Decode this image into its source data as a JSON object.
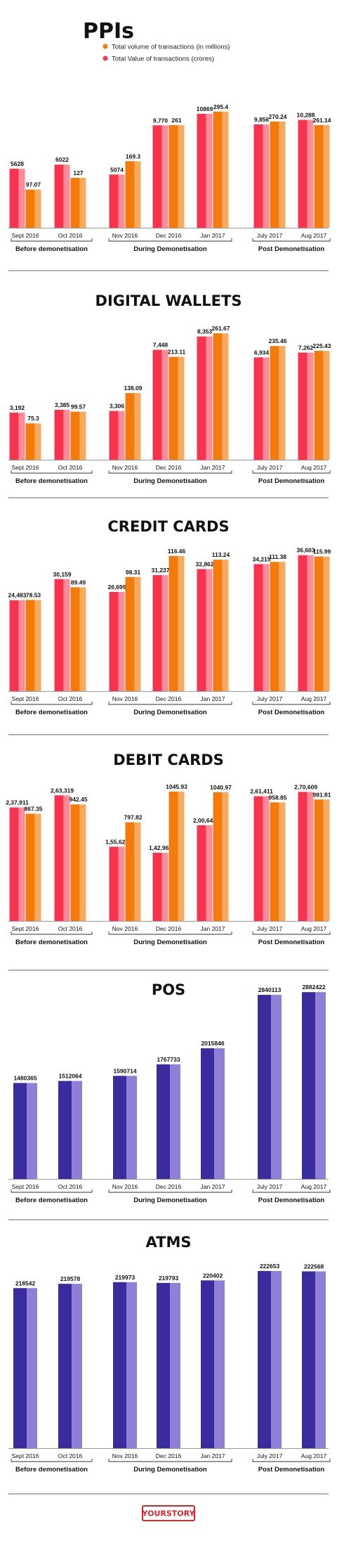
{
  "legend": {
    "volume_label": "Total volume of transactions (in millions)",
    "value_label": "Total Value of transactions (crores)"
  },
  "colors": {
    "value": "#f7334d",
    "value_light": "#ff8a9a",
    "volume": "#f47a0c",
    "volume_light": "#f9aa5f",
    "purple": "#3a2b9e",
    "purple_light": "#8f7fd6"
  },
  "groups": [
    "Before demonetisation",
    "During Demonetisation",
    "Post Demonetisation"
  ],
  "logo": {
    "text": "YOURSTORY"
  },
  "chart_data": [
    {
      "type": "bar",
      "title": "PPIs",
      "categories": [
        "Sept 2016",
        "Oct 2016",
        "Nov 2016",
        "Dec 2016",
        "Jan 2017",
        "July 2017",
        "Aug 2017"
      ],
      "category_groups": [
        "Before demonetisation",
        "Before demonetisation",
        "During Demonetisation",
        "During Demonetisation",
        "During Demonetisation",
        "Post Demonetisation",
        "Post Demonetisation"
      ],
      "series": [
        {
          "name": "Total Value of transactions (crores)",
          "values": [
            5628,
            6022,
            5074,
            9770,
            10869,
            9856,
            10288
          ],
          "labels": [
            "5628",
            "6022",
            "5074",
            "9,770",
            "10869",
            "9,856",
            "10,288"
          ]
        },
        {
          "name": "Total volume of transactions (in millions)",
          "values": [
            97.07,
            127,
            169.3,
            261,
            295.4,
            270.24,
            261.14
          ],
          "labels": [
            "97.07",
            "127",
            "169.3",
            "261",
            "295.4",
            "270.24",
            "261.14"
          ]
        }
      ]
    },
    {
      "type": "bar",
      "title": "DIGITAL WALLETS",
      "categories": [
        "Sept 2016",
        "Oct 2016",
        "Nov 2016",
        "Dec 2016",
        "Jan 2017",
        "July 2017",
        "Aug 2017"
      ],
      "category_groups": [
        "Before demonetisation",
        "Before demonetisation",
        "During Demonetisation",
        "During Demonetisation",
        "During Demonetisation",
        "Post Demonetisation",
        "Post Demonetisation"
      ],
      "series": [
        {
          "values": [
            3192,
            3385,
            3306,
            7448,
            8353,
            6934,
            7262
          ],
          "labels": [
            "3,192",
            "3,385",
            "3,306",
            "7,448",
            "8,353",
            "6,934",
            "7,262"
          ]
        },
        {
          "values": [
            75.3,
            99.57,
            138.09,
            213.11,
            261.67,
            235.46,
            225.43
          ],
          "labels": [
            "75.3",
            "99.57",
            "138.09",
            "213.11",
            "261.67",
            "235.46",
            "225.43"
          ]
        }
      ]
    },
    {
      "type": "bar",
      "title": "CREDIT CARDS",
      "categories": [
        "Sept 2016",
        "Oct 2016",
        "Nov 2016",
        "Dec 2016",
        "Jan 2017",
        "July 2017",
        "Aug 2017"
      ],
      "category_groups": [
        "Before demonetisation",
        "Before demonetisation",
        "During Demonetisation",
        "During Demonetisation",
        "During Demonetisation",
        "Post Demonetisation",
        "Post Demonetisation"
      ],
      "series": [
        {
          "values": [
            24483,
            30159,
            26699,
            31237,
            32862,
            34215,
            36603
          ],
          "labels": [
            "24,483",
            "30,159",
            "26,699",
            "31,237",
            "32,862",
            "34,215",
            "36,603"
          ]
        },
        {
          "values": [
            78.53,
            89.49,
            98.31,
            116.46,
            113.24,
            111.38,
            115.99
          ],
          "labels": [
            "78.53",
            "89.49",
            "98.31",
            "116.46",
            "113.24",
            "111.38",
            "115.99"
          ]
        }
      ]
    },
    {
      "type": "bar",
      "title": "DEBIT CARDS",
      "categories": [
        "Sept 2016",
        "Oct 2016",
        "Nov 2016",
        "Dec 2016",
        "Jan 2017",
        "July 2017",
        "Aug 2017"
      ],
      "category_groups": [
        "Before demonetisation",
        "Before demonetisation",
        "During Demonetisation",
        "During Demonetisation",
        "During Demonetisation",
        "Post Demonetisation",
        "Post Demonetisation"
      ],
      "series": [
        {
          "values": [
            237911,
            263319,
            155626,
            142965,
            200648,
            261411,
            270609
          ],
          "labels": [
            "2,37,911",
            "2,63,319",
            "1,55,626",
            "1,42,965",
            "2,00,648",
            "2,61,411",
            "2,70,609"
          ]
        },
        {
          "values": [
            867.35,
            942.45,
            797.82,
            1045.93,
            1040.97,
            958.85,
            981.81
          ],
          "labels": [
            "867.35",
            "942.45",
            "797.82",
            "1045.93",
            "1040.97",
            "958.85",
            "981.81"
          ]
        }
      ]
    },
    {
      "type": "bar",
      "title": "POS",
      "categories": [
        "Sept 2016",
        "Oct 2016",
        "Nov 2016",
        "Dec 2016",
        "Jan 2017",
        "July 2017",
        "Aug 2017"
      ],
      "category_groups": [
        "Before demonetisation",
        "Before demonetisation",
        "During Demonetisation",
        "During Demonetisation",
        "During Demonetisation",
        "Post Demonetisation",
        "Post Demonetisation"
      ],
      "series": [
        {
          "values": [
            1480365,
            1512064,
            1590714,
            1767733,
            2015846,
            2840113,
            2882422
          ],
          "labels": [
            "1480365",
            "1512064",
            "1590714",
            "1767733",
            "2015846",
            "2840113",
            "2882422"
          ]
        }
      ]
    },
    {
      "type": "bar",
      "title": "ATMS",
      "categories": [
        "Sept 2016",
        "Oct 2016",
        "Nov 2016",
        "Dec 2016",
        "Jan 2017",
        "July 2017",
        "Aug 2017"
      ],
      "category_groups": [
        "Before demonetisation",
        "Before demonetisation",
        "During Demonetisation",
        "During Demonetisation",
        "During Demonetisation",
        "Post Demonetisation",
        "Post Demonetisation"
      ],
      "series": [
        {
          "values": [
            218542,
            219578,
            219973,
            219793,
            220402,
            222653,
            222568
          ],
          "labels": [
            "218542",
            "219578",
            "219973",
            "219793",
            "220402",
            "222653",
            "222568"
          ]
        }
      ]
    }
  ]
}
